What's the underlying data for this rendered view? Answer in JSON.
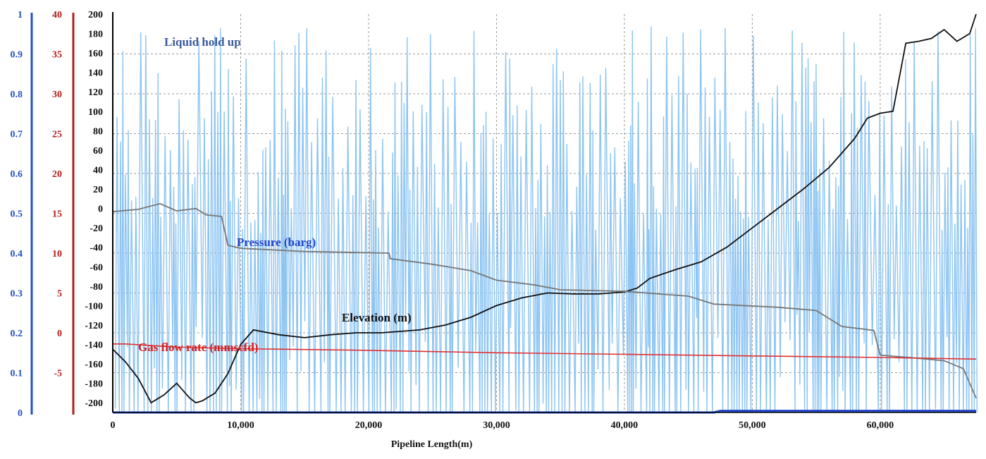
{
  "chart_data": {
    "type": "line",
    "xlabel": "Pipeline Length(m)",
    "xlim": [
      0,
      67500
    ],
    "x_ticks": [
      0,
      10000,
      20000,
      30000,
      40000,
      50000,
      60000
    ],
    "x_tick_labels": [
      "0",
      "10,000",
      "20,000",
      "30,000",
      "40,000",
      "50,000",
      "60,000"
    ],
    "grid": "dashed vertical and horizontal gridlines",
    "axes": [
      {
        "id": "holdup",
        "color": "#2451c4",
        "ylim": [
          0,
          1
        ],
        "tick_labels": [
          "0",
          "0.1",
          "0.2",
          "0.3",
          "0.4",
          "0.5",
          "0.6",
          "0.7",
          "0.8",
          "0.9",
          "1"
        ]
      },
      {
        "id": "flow",
        "color": "#b51f1f",
        "ylim": [
          -10,
          40
        ],
        "tick_labels": [
          "-5",
          "0",
          "5",
          "10",
          "15",
          "20",
          "25",
          "30",
          "35",
          "40"
        ]
      },
      {
        "id": "elevation",
        "color": "#111111",
        "ylim": [
          -210,
          200
        ],
        "tick_labels": [
          "-200",
          "-180",
          "-160",
          "-140",
          "-120",
          "-100",
          "-80",
          "-60",
          "-40",
          "-20",
          "0",
          "20",
          "40",
          "60",
          "80",
          "100",
          "120",
          "140",
          "160",
          "180",
          "200"
        ]
      }
    ],
    "annotations": [
      {
        "text": "Liquid hold up",
        "color": "#3a5a9c"
      },
      {
        "text": "Pressure (barg)",
        "color": "#2244cc"
      },
      {
        "text": "Elevation (m)",
        "color": "#111111"
      },
      {
        "text": "Gas flow rate (mmscfd)",
        "color": "#d42020"
      }
    ],
    "series": [
      {
        "axis": "elevation",
        "color": "#111111",
        "x": [
          0,
          1000,
          2000,
          3000,
          4000,
          5000,
          6000,
          6500,
          7000,
          8000,
          9000,
          10000,
          11000,
          13000,
          15000,
          17000,
          19000,
          21000,
          22000,
          24000,
          26000,
          28000,
          30000,
          32000,
          34000,
          36000,
          38000,
          40000,
          41000,
          42000,
          44000,
          46000,
          48000,
          50000,
          52000,
          54000,
          56000,
          58000,
          59000,
          60000,
          61000,
          62000,
          63000,
          64000,
          65000,
          66000,
          67000,
          67500
        ],
        "y": [
          -145,
          -158,
          -175,
          -200,
          -192,
          -180,
          -195,
          -200,
          -198,
          -190,
          -170,
          -140,
          -125,
          -130,
          -133,
          -130,
          -128,
          -128,
          -127,
          -125,
          -120,
          -112,
          -100,
          -92,
          -87,
          -88,
          -88,
          -86,
          -82,
          -72,
          -63,
          -55,
          -40,
          -20,
          0,
          20,
          42,
          72,
          93,
          98,
          100,
          170,
          172,
          175,
          184,
          172,
          180,
          200
        ]
      },
      {
        "axis": "flow",
        "color": "#777777",
        "x": [
          0,
          2000,
          3700,
          5000,
          6500,
          7300,
          8500,
          9000,
          10000,
          15000,
          21600,
          21700,
          25000,
          28000,
          30000,
          33000,
          35000,
          40000,
          45000,
          47000,
          52000,
          55000,
          57000,
          59500,
          60000,
          63000,
          65000,
          66500,
          67500
        ],
        "y": [
          15.2,
          15.5,
          16.2,
          15.3,
          15.6,
          14.8,
          14.6,
          11.0,
          10.6,
          10.2,
          10.0,
          9.3,
          8.6,
          7.8,
          6.6,
          6.0,
          5.4,
          5.2,
          4.6,
          3.6,
          3.2,
          2.8,
          0.8,
          0.3,
          -2.8,
          -3.2,
          -3.5,
          -4.5,
          -8.2
        ]
      },
      {
        "axis": "flow",
        "color": "#e03030",
        "x": [
          0,
          1000,
          5000,
          10000,
          20000,
          30000,
          40000,
          50000,
          60000,
          67500
        ],
        "y": [
          -1.4,
          -1.4,
          -1.8,
          -2.0,
          -2.2,
          -2.5,
          -2.7,
          -2.9,
          -3.1,
          -3.3
        ]
      },
      {
        "axis": "holdup",
        "color": "#8cc4f2",
        "note": "oscillating between ~0 and up to ~0.97 along the whole pipeline",
        "x": [
          0,
          67500
        ],
        "y": [
          0,
          0.97
        ]
      },
      {
        "axis": "holdup",
        "color": "#1a3fc8",
        "x": [
          0,
          47000,
          47500,
          67500
        ],
        "y": [
          0,
          0,
          0.004,
          0.004
        ]
      }
    ]
  }
}
